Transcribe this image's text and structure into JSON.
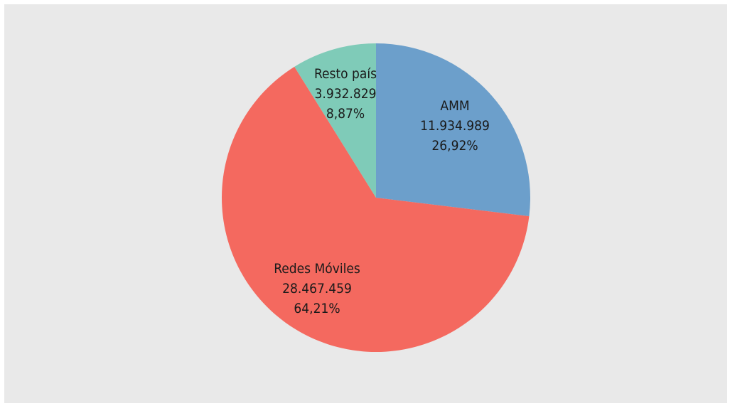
{
  "chart_data": {
    "type": "pie",
    "slices": [
      {
        "label": "AMM",
        "value_text": "11.934.989",
        "pct_text": "26,92%",
        "value": 11934989,
        "pct": 26.92,
        "color": "#6c9fcb"
      },
      {
        "label": "Redes Móviles",
        "value_text": "28.467.459",
        "pct_text": "64,21%",
        "value": 28467459,
        "pct": 64.21,
        "color": "#f4695f"
      },
      {
        "label": "Resto país",
        "value_text": "3.932.829",
        "pct_text": "8,87%",
        "value": 3932829,
        "pct": 8.87,
        "color": "#7fcbb8"
      }
    ],
    "start_angle": "12 o'clock",
    "direction": "clockwise",
    "legend": "none"
  }
}
